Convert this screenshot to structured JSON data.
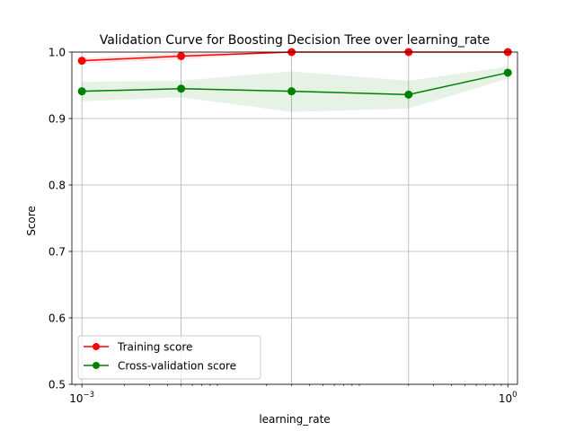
{
  "chart_data": {
    "type": "line",
    "title": "Validation Curve for Boosting Decision Tree over learning_rate",
    "xlabel": "learning_rate",
    "ylabel": "Score",
    "xscale": "log",
    "xlim": [
      0.00085,
      1.17
    ],
    "ylim": [
      0.5,
      1.0
    ],
    "x": [
      0.001,
      0.005,
      0.03,
      0.2,
      1.0
    ],
    "x_ticks": [
      {
        "value": 0.001,
        "base": "10",
        "exp": "−3"
      },
      {
        "value": 1.0,
        "base": "10",
        "exp": "0"
      }
    ],
    "y_ticks": [
      "0.5",
      "0.6",
      "0.7",
      "0.8",
      "0.9",
      "1.0"
    ],
    "grid": true,
    "legend_position": "lower-left",
    "series": [
      {
        "name": "Training score",
        "color": "#ff0000",
        "marker": "circle",
        "values": [
          0.987,
          0.994,
          1.0,
          1.0,
          1.0
        ],
        "band_lower": [
          0.983,
          0.989,
          1.0,
          1.0,
          1.0
        ],
        "band_upper": [
          0.991,
          0.999,
          1.0,
          1.0,
          1.0
        ]
      },
      {
        "name": "Cross-validation score",
        "color": "#008000",
        "marker": "circle",
        "values": [
          0.941,
          0.945,
          0.941,
          0.936,
          0.969
        ],
        "band_lower": [
          0.926,
          0.932,
          0.91,
          0.915,
          0.96
        ],
        "band_upper": [
          0.955,
          0.957,
          0.971,
          0.957,
          0.978
        ]
      }
    ]
  }
}
